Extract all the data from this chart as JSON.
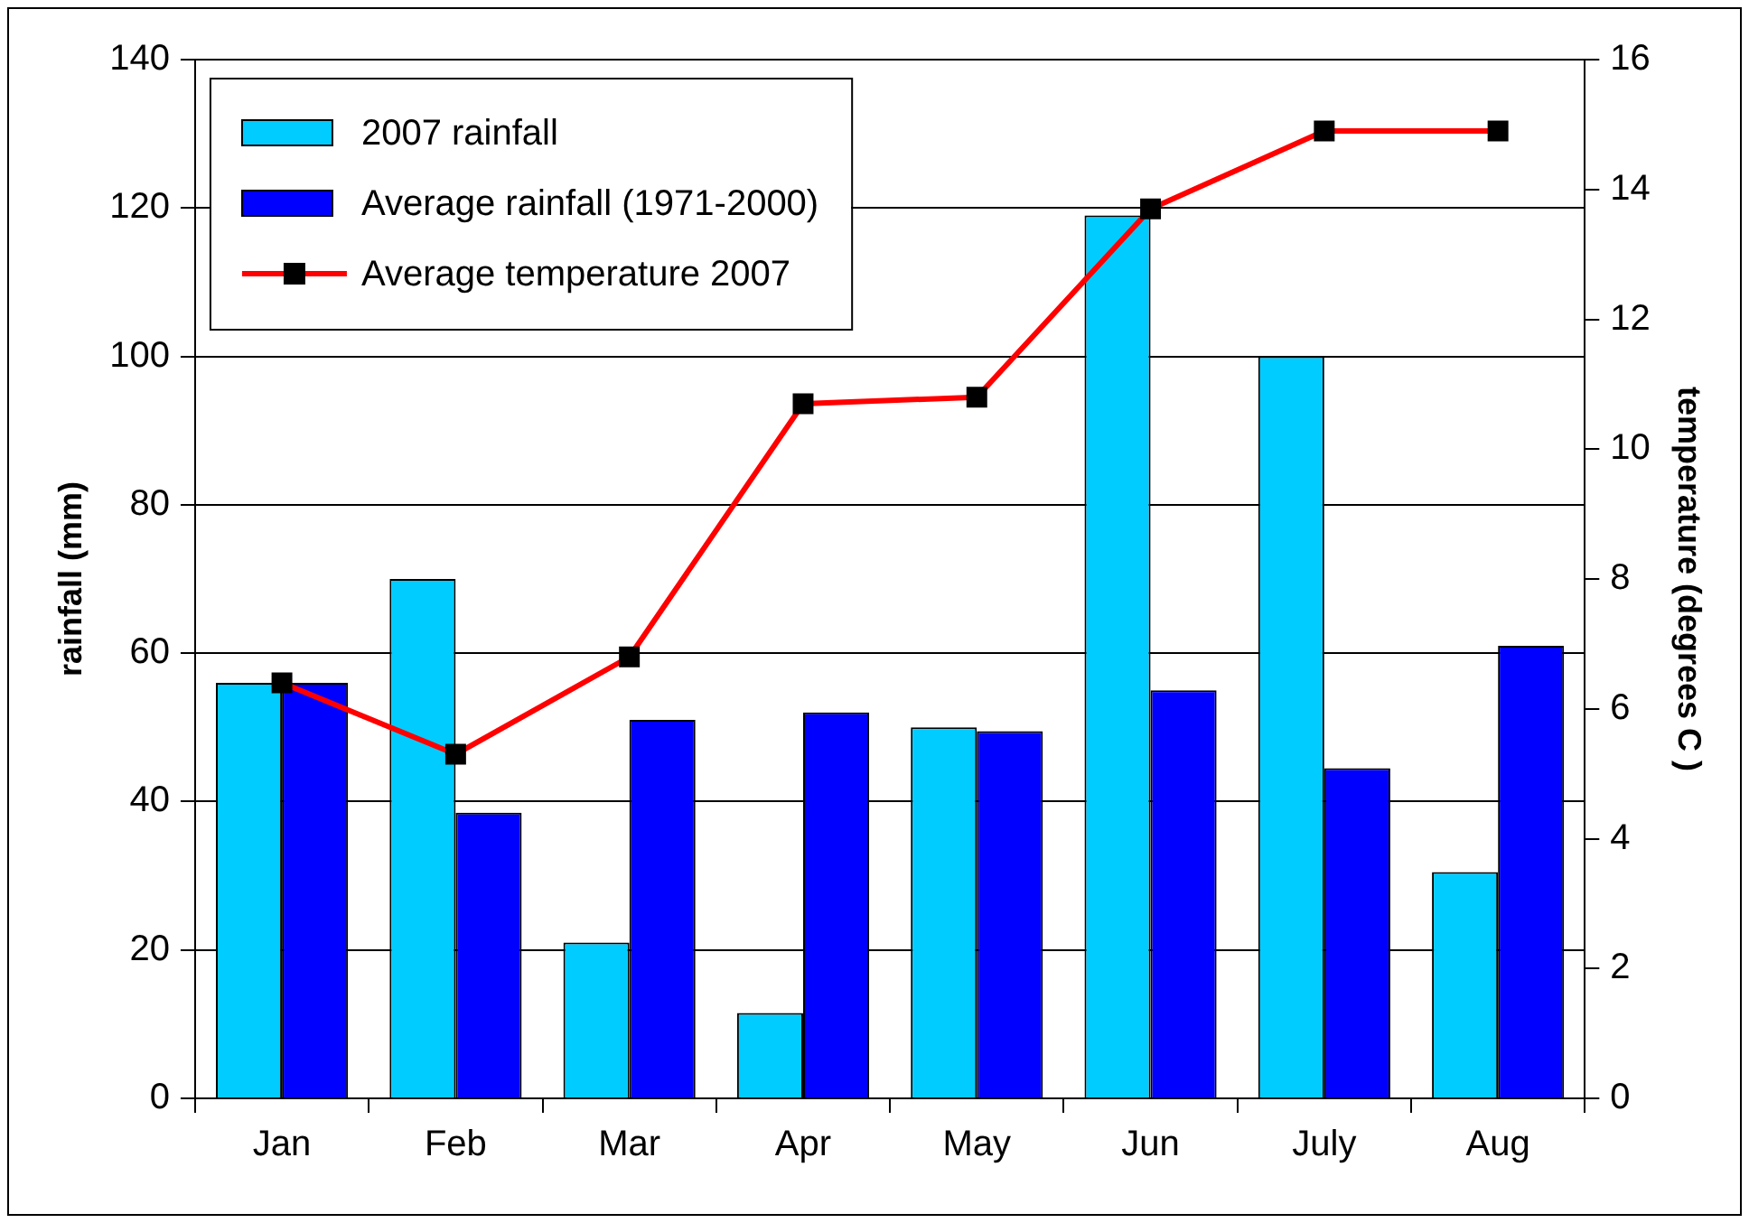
{
  "chart_data": {
    "type": "bar",
    "categories": [
      "Jan",
      "Feb",
      "Mar",
      "Apr",
      "May",
      "Jun",
      "July",
      "Aug"
    ],
    "ylabel": "rainfall (mm)",
    "y2label": "temperature (degrees C )",
    "ylim": [
      0,
      140
    ],
    "yticks": [
      0,
      20,
      40,
      60,
      80,
      100,
      120,
      140
    ],
    "y2lim": [
      0,
      16
    ],
    "y2ticks": [
      0,
      2,
      4,
      6,
      8,
      10,
      12,
      14,
      16
    ],
    "grid": "y",
    "legend": "top left",
    "marker": "square",
    "series": [
      {
        "name": "2007 rainfall",
        "color": "#00ccff",
        "values": [
          56,
          70,
          21,
          11.5,
          50,
          119,
          100,
          30.5
        ]
      },
      {
        "name": "Average rainfall (1971-2000)",
        "color": "#0000ff",
        "values": [
          56,
          38.5,
          51,
          52,
          49.5,
          55,
          44.5,
          61
        ]
      },
      {
        "name": "Average temperature 2007",
        "type": "line",
        "axis": "y2",
        "color": "#ff0000",
        "values": [
          6.4,
          5.3,
          6.8,
          10.7,
          10.8,
          13.7,
          14.9,
          14.9
        ]
      }
    ]
  }
}
